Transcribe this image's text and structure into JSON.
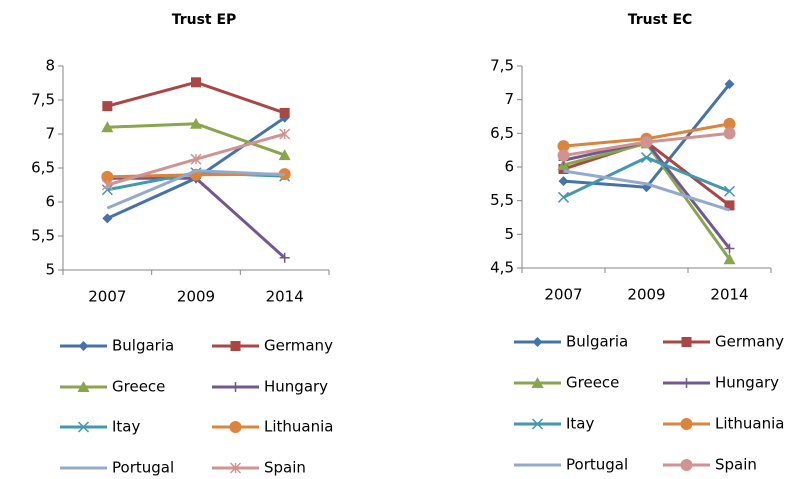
{
  "chart_data": [
    {
      "type": "line",
      "title": "Trust EP",
      "categories": [
        "2007",
        "2009",
        "2014"
      ],
      "ylim": [
        5,
        8
      ],
      "yticks": [
        5,
        {
          "value": 5.5,
          "label": "5,5"
        },
        6,
        {
          "value": 6.5,
          "label": "6,5"
        },
        7,
        {
          "value": 7.5,
          "label": "7,5"
        },
        8
      ],
      "grid": false,
      "series": [
        {
          "name": "Bulgaria",
          "color": "#4572a7",
          "marker": "diamond",
          "values": [
            5.76,
            6.35,
            7.24
          ]
        },
        {
          "name": "Germany",
          "color": "#aa4643",
          "marker": "square",
          "values": [
            7.41,
            7.76,
            7.31
          ]
        },
        {
          "name": "Greece",
          "color": "#89a54e",
          "marker": "triangle",
          "values": [
            7.1,
            7.15,
            6.69
          ]
        },
        {
          "name": "Hungary",
          "color": "#71588f",
          "marker": "plus",
          "values": [
            6.35,
            6.35,
            5.18
          ]
        },
        {
          "name": "Itay",
          "color": "#4198af",
          "marker": "x",
          "values": [
            6.18,
            6.43,
            6.38
          ]
        },
        {
          "name": "Lithuania",
          "color": "#db843d",
          "marker": "circle",
          "values": [
            6.37,
            6.4,
            6.41
          ]
        },
        {
          "name": "Portugal",
          "color": "#93a9cf",
          "marker": "none",
          "values": [
            5.91,
            6.46,
            6.4
          ]
        },
        {
          "name": "Spain",
          "color": "#d19392",
          "marker": "star",
          "values": [
            6.25,
            6.63,
            7.0
          ]
        }
      ]
    },
    {
      "type": "line",
      "title": "Trust EC",
      "categories": [
        "2007",
        "2009",
        "2014"
      ],
      "ylim": [
        4.5,
        7.5
      ],
      "yticks": [
        {
          "value": 4.5,
          "label": "4,5"
        },
        5,
        {
          "value": 5.5,
          "label": "5,5"
        },
        6,
        {
          "value": 6.5,
          "label": "6,5"
        },
        7,
        {
          "value": 7.5,
          "label": "7,5"
        }
      ],
      "grid": false,
      "series": [
        {
          "name": "Bulgaria",
          "color": "#4572a7",
          "marker": "diamond",
          "values": [
            5.79,
            5.7,
            7.23
          ]
        },
        {
          "name": "Germany",
          "color": "#aa4643",
          "marker": "square",
          "values": [
            5.97,
            6.37,
            5.43
          ]
        },
        {
          "name": "Greece",
          "color": "#89a54e",
          "marker": "triangle",
          "values": [
            6.03,
            6.35,
            4.63
          ]
        },
        {
          "name": "Hungary",
          "color": "#71588f",
          "marker": "plus",
          "values": [
            6.1,
            6.37,
            4.79
          ]
        },
        {
          "name": "Itay",
          "color": "#4198af",
          "marker": "x",
          "values": [
            5.55,
            6.14,
            5.64
          ]
        },
        {
          "name": "Lithuania",
          "color": "#db843d",
          "marker": "circle",
          "values": [
            6.31,
            6.42,
            6.64
          ]
        },
        {
          "name": "Portugal",
          "color": "#93a9cf",
          "marker": "none",
          "values": [
            5.94,
            5.75,
            5.36
          ]
        },
        {
          "name": "Spain",
          "color": "#d19392",
          "marker": "circle",
          "values": [
            6.17,
            6.37,
            6.5
          ]
        }
      ]
    }
  ]
}
